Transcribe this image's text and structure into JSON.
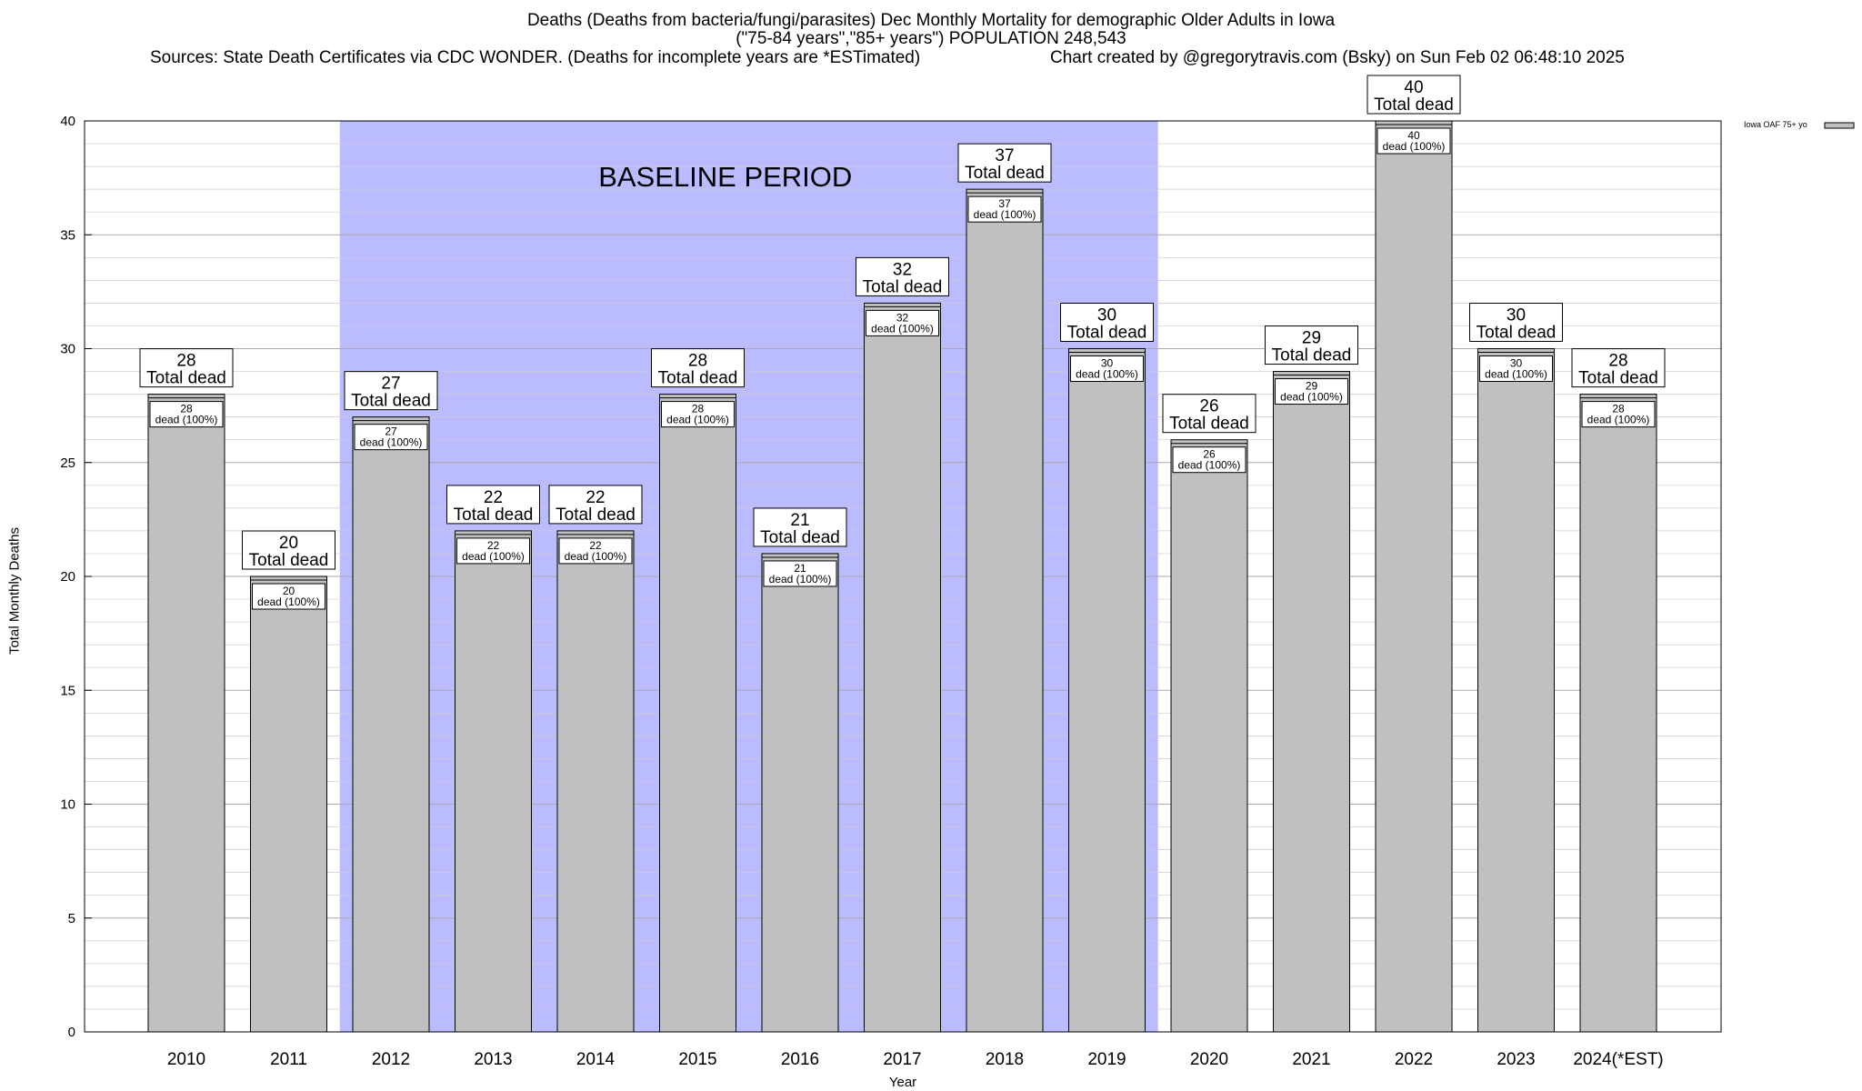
{
  "chart_data": {
    "type": "bar",
    "title": "Deaths (Deaths from bacteria/fungi/parasites) Dec Monthly Mortality for demographic Older Adults in Iowa",
    "subtitle": "(\"75-84 years\",\"85+ years\") POPULATION 248,543",
    "source_line": "Sources: State Death Certificates via CDC WONDER. (Deaths for incomplete years are *ESTimated)",
    "credit_line": "Chart created by @gregorytravis.com (Bsky) on Sun Feb 02 06:48:10 2025",
    "xlabel": "Year",
    "ylabel": "Total Monthly Deaths",
    "ylim": [
      0,
      40
    ],
    "yticks": [
      0,
      5,
      10,
      15,
      20,
      25,
      30,
      35,
      40
    ],
    "categories": [
      "2010",
      "2011",
      "2012",
      "2013",
      "2014",
      "2015",
      "2016",
      "2017",
      "2018",
      "2019",
      "2020",
      "2021",
      "2022",
      "2023",
      "2024(*EST)"
    ],
    "series": [
      {
        "name": "Iowa OAF 75+ yo",
        "color": "#c0c0c0",
        "values": [
          28,
          20,
          27,
          22,
          22,
          28,
          21,
          32,
          37,
          30,
          26,
          29,
          40,
          30,
          28
        ]
      }
    ],
    "total_label_suffix": "Total dead",
    "inner_label_suffix": "dead (100%)",
    "baseline": {
      "label": "BASELINE PERIOD",
      "start_category": "2012",
      "end_category": "2019",
      "color": "#bbbbff"
    },
    "grid": true,
    "legend_position": "top-right"
  }
}
